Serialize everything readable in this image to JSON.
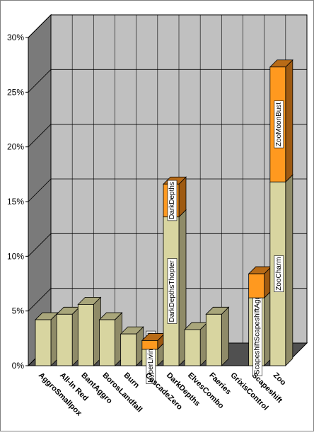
{
  "chart_data": {
    "type": "bar",
    "stacked": true,
    "three_d": true,
    "grid": true,
    "y_format": "percent",
    "ylim": [
      0,
      30
    ],
    "y_ticks": [
      0,
      5,
      10,
      15,
      20,
      25,
      30
    ],
    "y_tick_labels": [
      "0%",
      "5%",
      "10%",
      "15%",
      "20%",
      "25%",
      "30%"
    ],
    "categories": [
      "AggroSmallpox",
      "All-In Red",
      "BantAggro",
      "BorosLandfall",
      "Burn",
      "CascadeZero",
      "DarkDepths",
      "ElvesCombo",
      "Faeries",
      "GrixisControl",
      "Scapeshift",
      "Zoo"
    ],
    "series": [
      {
        "values": [
          4.2,
          4.7,
          5.6,
          4.2,
          2.9,
          1.5,
          13.6,
          3.3,
          4.7,
          0,
          6.2,
          16.8
        ]
      },
      {
        "values": [
          0,
          0,
          0,
          0,
          0,
          0.8,
          3.0,
          0,
          0,
          0,
          2.2,
          10.5
        ]
      }
    ],
    "data_labels": [
      {
        "category": "CascadeZero",
        "series": 0,
        "text": "HyperLivingEnd"
      },
      {
        "category": "DarkDepths",
        "series": 0,
        "text": "DarkDepthsThopter"
      },
      {
        "category": "DarkDepths",
        "series": 1,
        "text": "DarkDepths"
      },
      {
        "category": "Scapeshift",
        "series": 0,
        "text": "ScapeshiftScapeshiftAggro"
      },
      {
        "category": "Zoo",
        "series": 0,
        "text": "ZooCharm"
      },
      {
        "category": "Zoo",
        "series": 1,
        "text": "ZooMoonBust"
      }
    ],
    "colors": {
      "series0_front": "#d8d5a0",
      "series0_side": "#8f8b68",
      "series0_top": "#a9a67b",
      "series1_front": "#ff991f",
      "series1_side": "#9e5a12",
      "series1_top": "#b86b17",
      "wall": "#c0c0c0",
      "side_wall": "#7a7a7a",
      "floor": "#505050"
    }
  }
}
